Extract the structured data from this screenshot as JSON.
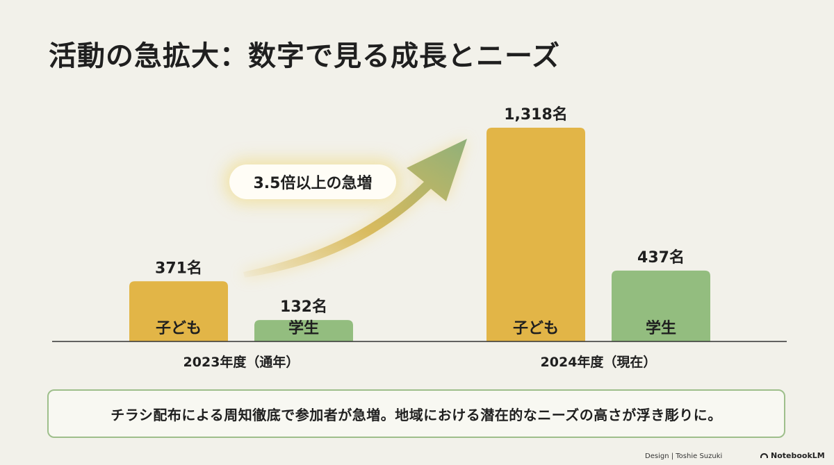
{
  "title": "活動の急拡大：数字で見る成長とニーズ",
  "callout": "3.5倍以上の急増",
  "note": "チラシ配布による周知徹底で参加者が急増。地域における潜在的なニーズの高さが浮き彫りに。",
  "footer": {
    "credit": "Design | Toshie Suzuki",
    "brand": "NotebookLM"
  },
  "colors": {
    "children": "#e2b547",
    "students": "#93bd7f",
    "arrow_start": "#d4b24a",
    "arrow_end": "#8fb07a"
  },
  "chart_data": {
    "type": "bar",
    "categories": [
      "2023年度（通年）",
      "2024年度（現在）"
    ],
    "series": [
      {
        "name": "子ども",
        "values": [
          371,
          1318
        ],
        "labels": [
          "371名",
          "1,318名"
        ]
      },
      {
        "name": "学生",
        "values": [
          132,
          437
        ],
        "labels": [
          "132名",
          "437名"
        ]
      }
    ],
    "ylim": [
      0,
      1318
    ],
    "grid": false,
    "legend": "none"
  }
}
